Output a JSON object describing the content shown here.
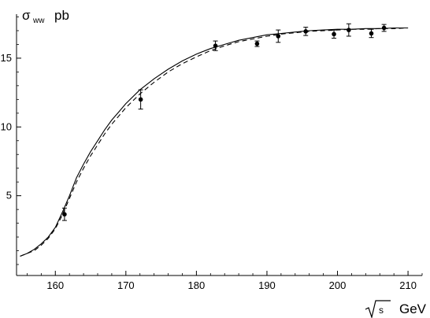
{
  "chart_data": {
    "type": "line",
    "title": "",
    "ylabel": {
      "symbol": "σ",
      "subscript": "ww",
      "unit": "pb"
    },
    "xlabel": {
      "symbol": "s",
      "unit": "GeV"
    },
    "xlim": [
      154.5,
      212
    ],
    "ylim": [
      -0.8,
      18.2
    ],
    "x_ticks": [
      {
        "value": 160,
        "label": "160"
      },
      {
        "value": 170,
        "label": "170"
      },
      {
        "value": 180,
        "label": "180"
      },
      {
        "value": 190,
        "label": "190"
      },
      {
        "value": 200,
        "label": "200"
      },
      {
        "value": 210,
        "label": "210"
      }
    ],
    "y_ticks": [
      {
        "value": 5,
        "label": "5"
      },
      {
        "value": 10,
        "label": "10"
      },
      {
        "value": 15,
        "label": "15"
      }
    ],
    "x_minor_step": 2,
    "y_minor_step": 1,
    "series": [
      {
        "style": "solid",
        "x": [
          155,
          156,
          157,
          158,
          159,
          160,
          161,
          162,
          163,
          164,
          165,
          166,
          167,
          168,
          169,
          170,
          172,
          174,
          176,
          178,
          180,
          182,
          184,
          186,
          188,
          190,
          192,
          194,
          196,
          198,
          200,
          202,
          204,
          206,
          208,
          210
        ],
        "y": [
          0.6,
          0.8,
          1.1,
          1.5,
          2.0,
          2.7,
          3.8,
          5.0,
          6.3,
          7.3,
          8.2,
          9.0,
          9.8,
          10.5,
          11.1,
          11.7,
          12.7,
          13.5,
          14.2,
          14.8,
          15.3,
          15.7,
          16.0,
          16.3,
          16.5,
          16.7,
          16.8,
          16.9,
          17.0,
          17.05,
          17.1,
          17.1,
          17.15,
          17.15,
          17.2,
          17.2
        ]
      },
      {
        "style": "dashed",
        "x": [
          155,
          156,
          157,
          158,
          159,
          160,
          161,
          162,
          163,
          164,
          165,
          166,
          167,
          168,
          169,
          170,
          172,
          174,
          176,
          178,
          180,
          182,
          184,
          186,
          188,
          190,
          192,
          194,
          196,
          198,
          200,
          202,
          204,
          206,
          208,
          210
        ],
        "y": [
          0.6,
          0.8,
          1.0,
          1.4,
          1.9,
          2.6,
          3.6,
          4.8,
          6.0,
          7.0,
          7.9,
          8.7,
          9.5,
          10.2,
          10.8,
          11.4,
          12.4,
          13.25,
          14.0,
          14.6,
          15.1,
          15.55,
          15.9,
          16.2,
          16.4,
          16.6,
          16.75,
          16.85,
          16.95,
          17.0,
          17.05,
          17.1,
          17.1,
          17.15,
          17.15,
          17.2
        ]
      }
    ],
    "points": [
      {
        "x": 161.3,
        "y": 3.65,
        "err": 0.45
      },
      {
        "x": 172.1,
        "y": 12.0,
        "err": 0.7
      },
      {
        "x": 182.7,
        "y": 15.9,
        "err": 0.35
      },
      {
        "x": 188.6,
        "y": 16.05,
        "err": 0.2
      },
      {
        "x": 191.6,
        "y": 16.6,
        "err": 0.45
      },
      {
        "x": 195.5,
        "y": 16.95,
        "err": 0.3
      },
      {
        "x": 199.5,
        "y": 16.75,
        "err": 0.3
      },
      {
        "x": 201.6,
        "y": 17.05,
        "err": 0.45
      },
      {
        "x": 204.8,
        "y": 16.8,
        "err": 0.3
      },
      {
        "x": 206.6,
        "y": 17.2,
        "err": 0.25
      }
    ]
  }
}
